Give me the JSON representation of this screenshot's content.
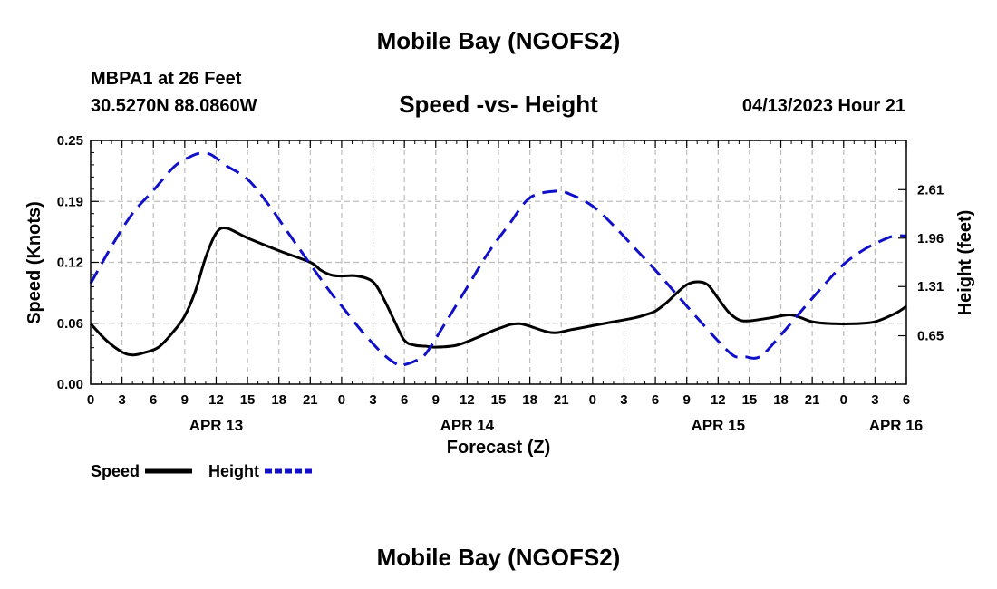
{
  "header": {
    "title": "Mobile Bay (NGOFS2)",
    "station": "MBPA1 at 26 Feet",
    "coords": "30.5270N  88.0860W",
    "subtitle": "Speed -vs- Height",
    "datetime": "04/13/2023 Hour 21"
  },
  "footer": {
    "title": "Mobile Bay (NGOFS2)"
  },
  "colors": {
    "speed": "#000000",
    "height": "#1010c8",
    "grid": "#bdbdbd"
  },
  "chart_data": {
    "type": "line",
    "title": "Speed -vs- Height",
    "xlabel": "Forecast (Z)",
    "ylabel": "Speed (Knots)",
    "y2label": "Height (feet)",
    "grid": true,
    "legend_position": "bottom-left",
    "x_range_hours": [
      0,
      78
    ],
    "x_tick_labels": [
      "0",
      "3",
      "6",
      "9",
      "12",
      "15",
      "18",
      "21",
      "0",
      "3",
      "6",
      "9",
      "12",
      "15",
      "18",
      "21",
      "0",
      "3",
      "6",
      "9",
      "12",
      "15",
      "18",
      "21",
      "0",
      "3",
      "6"
    ],
    "date_labels": [
      {
        "hour": 12,
        "label": "APR 13"
      },
      {
        "hour": 36,
        "label": "APR 14"
      },
      {
        "hour": 60,
        "label": "APR 15"
      },
      {
        "hour": 77,
        "label": "APR 16"
      }
    ],
    "y_left": {
      "range": [
        0,
        0.25
      ],
      "ticks": [
        "0.00",
        "0.06",
        "0.12",
        "0.19",
        "0.25"
      ]
    },
    "y_right": {
      "range": [
        0,
        3.27
      ],
      "ticks": [
        "0.65",
        "1.31",
        "1.96",
        "2.61"
      ],
      "tick_values": [
        0.65,
        1.31,
        1.96,
        2.61
      ]
    },
    "series": [
      {
        "name": "Speed",
        "axis": "left",
        "style": "solid",
        "x": [
          0,
          1.5,
          3,
          4,
          5,
          6.5,
          8,
          9,
          10,
          11,
          12,
          13,
          15,
          18,
          21,
          22,
          23,
          24,
          25.5,
          27,
          28,
          29,
          30,
          31,
          32,
          33,
          35,
          37,
          39,
          41,
          44,
          46,
          48,
          50,
          52,
          53,
          54,
          55,
          56,
          57,
          58,
          59,
          60,
          61,
          62,
          63,
          65,
          67,
          69,
          71,
          73,
          75,
          77,
          78
        ],
        "values": [
          0.062,
          0.045,
          0.033,
          0.03,
          0.032,
          0.038,
          0.055,
          0.07,
          0.095,
          0.13,
          0.155,
          0.16,
          0.15,
          0.137,
          0.125,
          0.117,
          0.112,
          0.111,
          0.111,
          0.105,
          0.088,
          0.066,
          0.045,
          0.04,
          0.039,
          0.038,
          0.04,
          0.048,
          0.057,
          0.062,
          0.053,
          0.056,
          0.06,
          0.064,
          0.068,
          0.071,
          0.075,
          0.083,
          0.093,
          0.102,
          0.105,
          0.102,
          0.088,
          0.074,
          0.066,
          0.065,
          0.068,
          0.071,
          0.064,
          0.062,
          0.062,
          0.064,
          0.073,
          0.08
        ]
      },
      {
        "name": "Height",
        "axis": "right",
        "style": "dashed",
        "x": [
          0,
          2,
          4,
          6,
          8,
          9.5,
          10.5,
          11.5,
          13,
          15,
          17,
          19,
          21,
          23,
          24,
          26,
          28,
          29.5,
          30,
          31,
          32,
          34,
          36,
          38,
          40,
          42,
          44.5,
          46,
          48,
          50,
          52,
          54,
          56,
          58,
          60,
          61.5,
          62.5,
          64,
          66,
          68,
          70,
          72,
          74,
          76,
          77,
          78
        ],
        "values": [
          1.35,
          1.85,
          2.29,
          2.6,
          2.92,
          3.05,
          3.1,
          3.08,
          2.93,
          2.75,
          2.41,
          2.01,
          1.61,
          1.22,
          1.05,
          0.7,
          0.4,
          0.25,
          0.26,
          0.31,
          0.4,
          0.84,
          1.3,
          1.76,
          2.14,
          2.5,
          2.59,
          2.54,
          2.39,
          2.13,
          1.83,
          1.53,
          1.21,
          0.89,
          0.58,
          0.38,
          0.37,
          0.37,
          0.66,
          0.99,
          1.31,
          1.61,
          1.81,
          1.95,
          1.99,
          1.99
        ]
      }
    ]
  },
  "legend": {
    "speed_label": "Speed",
    "height_label": "Height"
  }
}
